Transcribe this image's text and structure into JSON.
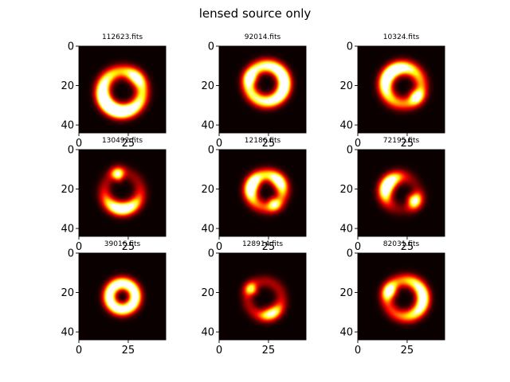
{
  "figure": {
    "title": "lensed source only"
  },
  "chart_data": [
    {
      "type": "heatmap",
      "title": "112623.fits",
      "xticks": [
        0,
        25
      ],
      "yticks": [
        0,
        20,
        40
      ],
      "extent": [
        44,
        44
      ],
      "colormap": "hot",
      "blobs": [
        {
          "cx": 22,
          "cy": 23,
          "r": 10,
          "w": 2.4,
          "a": 0.55,
          "arcs": [
            {
              "ang": 125,
              "spread": 65,
              "amp": 1.3
            },
            {
              "ang": 315,
              "spread": 22,
              "amp": 0.7
            }
          ]
        }
      ]
    },
    {
      "type": "heatmap",
      "title": "92014.fits",
      "xticks": [
        0,
        25
      ],
      "yticks": [
        0,
        20,
        40
      ],
      "extent": [
        44,
        44
      ],
      "colormap": "hot",
      "blobs": [
        {
          "cx": 24,
          "cy": 19,
          "r": 9,
          "w": 2.3,
          "a": 0.9,
          "arcs": [
            {
              "ang": 0,
              "spread": 60,
              "amp": 0.6
            },
            {
              "ang": 200,
              "spread": 18,
              "amp": 0.5
            }
          ]
        }
      ]
    },
    {
      "type": "heatmap",
      "title": "10324.fits",
      "xticks": [
        0,
        25
      ],
      "yticks": [
        0,
        20,
        40
      ],
      "extent": [
        44,
        44
      ],
      "colormap": "hot",
      "blobs": [
        {
          "cx": 23,
          "cy": 20,
          "r": 9,
          "w": 2.4,
          "a": 0.55,
          "arcs": [
            {
              "ang": 225,
              "spread": 55,
              "amp": 1.0
            },
            {
              "ang": 40,
              "spread": 18,
              "amp": 0.75
            }
          ]
        }
      ]
    },
    {
      "type": "heatmap",
      "title": "130492.fits",
      "xticks": [
        0,
        25
      ],
      "yticks": [
        0,
        20,
        40
      ],
      "extent": [
        44,
        44
      ],
      "colormap": "hot",
      "blobs": [
        {
          "cx": 22,
          "cy": 21,
          "r": 9,
          "w": 2.3,
          "a": 0.2,
          "arcs": [
            {
              "ang": 90,
              "spread": 45,
              "amp": 1.2
            },
            {
              "ang": 255,
              "spread": 14,
              "amp": 0.9
            }
          ]
        }
      ]
    },
    {
      "type": "heatmap",
      "title": "12186.fits",
      "xticks": [
        0,
        25
      ],
      "yticks": [
        0,
        20,
        40
      ],
      "extent": [
        44,
        44
      ],
      "colormap": "hot",
      "blobs": [
        {
          "cx": 24,
          "cy": 21,
          "r": 8,
          "w": 2.3,
          "a": 0.5,
          "arcs": [
            {
              "ang": 200,
              "spread": 35,
              "amp": 1.0
            },
            {
              "ang": 320,
              "spread": 30,
              "amp": 0.8
            },
            {
              "ang": 60,
              "spread": 16,
              "amp": 0.6
            }
          ]
        }
      ]
    },
    {
      "type": "heatmap",
      "title": "72195.fits",
      "xticks": [
        0,
        25
      ],
      "yticks": [
        0,
        20,
        40
      ],
      "extent": [
        44,
        44
      ],
      "colormap": "hot",
      "blobs": [
        {
          "cx": 22,
          "cy": 22,
          "r": 8,
          "w": 2.4,
          "a": 0.15,
          "arcs": [
            {
              "ang": 210,
              "spread": 40,
              "amp": 1.4
            },
            {
              "ang": 30,
              "spread": 20,
              "amp": 1.0
            }
          ]
        }
      ]
    },
    {
      "type": "heatmap",
      "title": "39016.fits",
      "xticks": [
        0,
        25
      ],
      "yticks": [
        0,
        20,
        40
      ],
      "extent": [
        44,
        44
      ],
      "colormap": "hot",
      "blobs": [
        {
          "cx": 22,
          "cy": 22,
          "r": 6.5,
          "w": 2.2,
          "a": 1.25,
          "arcs": []
        }
      ]
    },
    {
      "type": "heatmap",
      "title": "128914.fits",
      "xticks": [
        0,
        25
      ],
      "yticks": [
        0,
        20,
        40
      ],
      "extent": [
        44,
        44
      ],
      "colormap": "hot",
      "blobs": [
        {
          "cx": 23,
          "cy": 23,
          "r": 8.5,
          "w": 2.2,
          "a": 0.25,
          "arcs": [
            {
              "ang": 65,
              "spread": 28,
              "amp": 0.85
            },
            {
              "ang": 215,
              "spread": 15,
              "amp": 0.7
            }
          ]
        }
      ]
    },
    {
      "type": "heatmap",
      "title": "82031.fits",
      "xticks": [
        0,
        25
      ],
      "yticks": [
        0,
        20,
        40
      ],
      "extent": [
        44,
        44
      ],
      "colormap": "hot",
      "blobs": [
        {
          "cx": 24,
          "cy": 23,
          "r": 9,
          "w": 2.3,
          "a": 0.4,
          "arcs": [
            {
              "ang": 0,
              "spread": 60,
              "amp": 0.9
            },
            {
              "ang": 205,
              "spread": 20,
              "amp": 0.9
            }
          ]
        }
      ]
    }
  ]
}
